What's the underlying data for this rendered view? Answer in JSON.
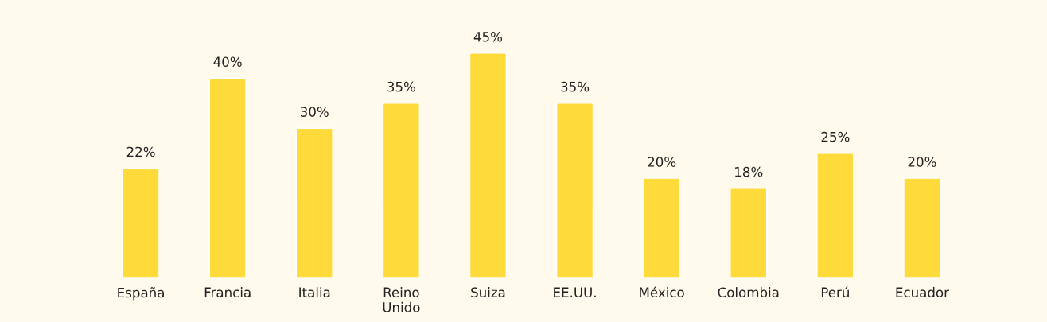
{
  "chart_data": {
    "type": "bar",
    "categories": [
      "España",
      "Francia",
      "Italia",
      "Reino\nUnido",
      "Suiza",
      "EE.UU.",
      "México",
      "Colombia",
      "Perú",
      "Ecuador"
    ],
    "values": [
      22,
      40,
      30,
      35,
      45,
      35,
      20,
      18,
      25,
      20
    ],
    "value_labels": [
      "22%",
      "40%",
      "30%",
      "35%",
      "45%",
      "35%",
      "20%",
      "18%",
      "25%",
      "20%"
    ],
    "color": "#ffda3b",
    "grid": false,
    "legend": false
  }
}
